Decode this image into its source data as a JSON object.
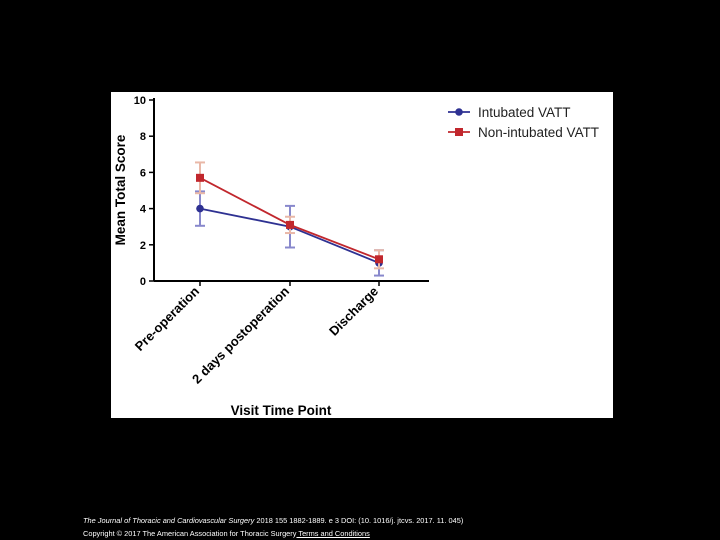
{
  "chart_data": {
    "type": "line",
    "title": "",
    "xlabel": "Visit Time Point",
    "ylabel": "Mean Total Score",
    "categories": [
      "Pre-operation",
      "2 days postoperation",
      "Discharge"
    ],
    "ylim": [
      0,
      10
    ],
    "yticks": [
      0,
      2,
      4,
      6,
      8,
      10
    ],
    "legend_position": "top-right",
    "series": [
      {
        "name": "Intubated VATT",
        "color": "#2e3192",
        "error_color": "#8888cc",
        "marker": "circle",
        "values": [
          4.0,
          3.0,
          1.0
        ],
        "errors": [
          0.95,
          1.15,
          0.7
        ]
      },
      {
        "name": "Non-intubated VATT",
        "color": "#c1272d",
        "error_color": "#e9b8a8",
        "marker": "square",
        "values": [
          5.7,
          3.1,
          1.2
        ],
        "errors": [
          0.85,
          0.45,
          0.5
        ]
      }
    ]
  },
  "footer": {
    "journal": "The Journal of Thoracic and Cardiovascular Surgery",
    "citation": " 2018 155 1882-1889. e 3 DOI: (10. 1016/j. jtcvs. 2017. 11. 045)",
    "copyright": "Copyright © 2017 The American Association for Thoracic Surgery",
    "terms_link": " Terms and Conditions"
  }
}
